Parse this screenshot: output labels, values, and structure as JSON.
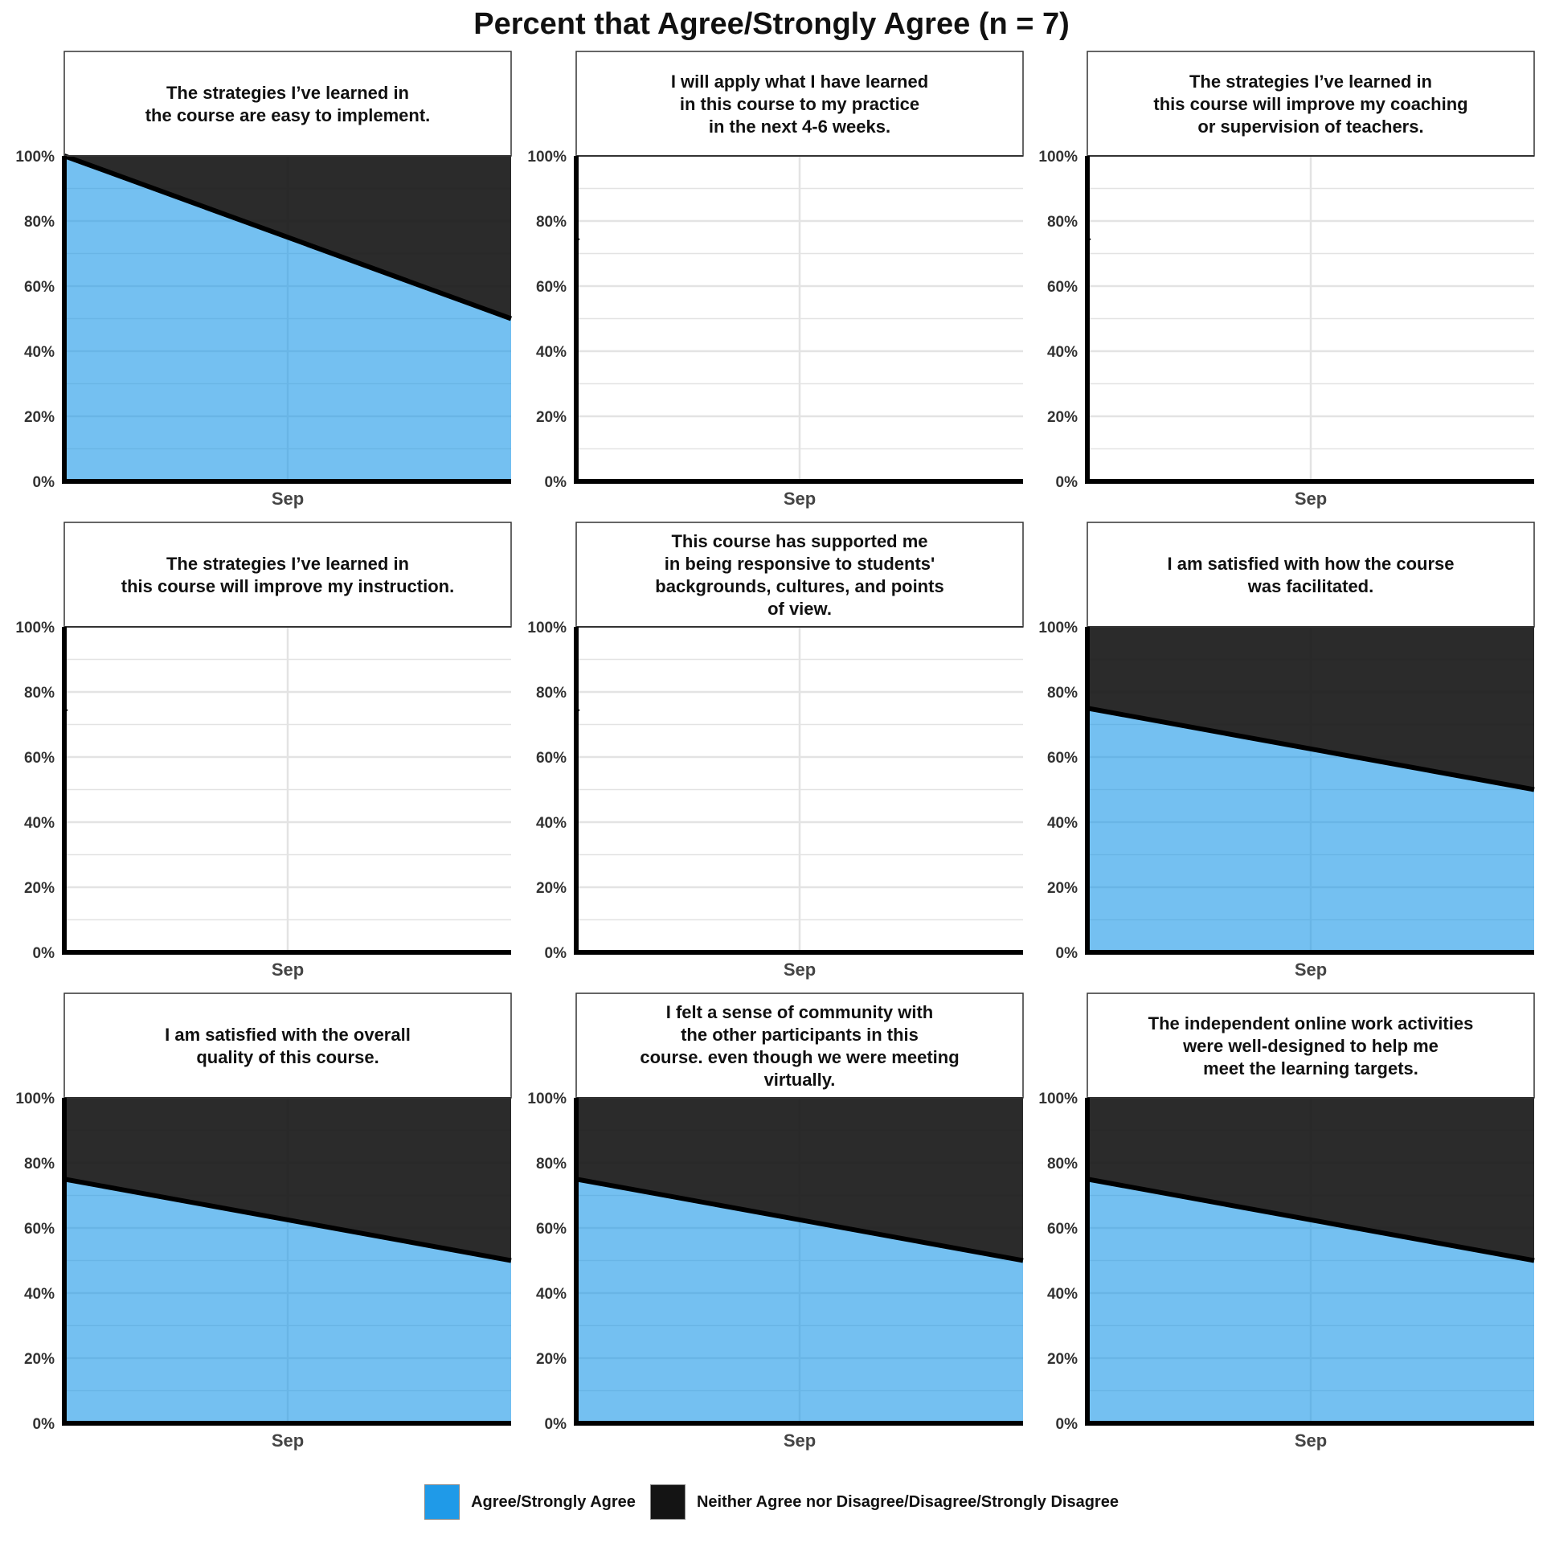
{
  "title": "Percent that Agree/Strongly Agree (n = 7)",
  "legend": {
    "items": [
      {
        "label": "Agree/Strongly Agree",
        "color": "#1f9ae8"
      },
      {
        "label": "Neither Agree nor Disagree/Disagree/Strongly Disagree",
        "color": "#141414"
      }
    ]
  },
  "chart_data": {
    "type": "area",
    "facet_layout": "3x3 grid",
    "x_categories": [
      "Sep"
    ],
    "ylim": [
      0,
      100
    ],
    "yticks": [
      "0%",
      "20%",
      "40%",
      "60%",
      "80%",
      "100%"
    ],
    "grid": true,
    "legend_position": "bottom",
    "series_colors": {
      "agree": "#1f9ae8",
      "neither_disagree": "#141414"
    },
    "panels": [
      {
        "title": "The strategies I’ve learned in\nthe course are easy to implement.",
        "agree_start": 100,
        "agree_end": 50,
        "has_data": true
      },
      {
        "title": "I will apply what I have learned\nin this course to my practice\nin the next 4-6 weeks.",
        "agree_start": 75,
        "agree_end": 0,
        "has_data": false
      },
      {
        "title": "The strategies I’ve learned in\nthis course will improve my coaching\nor supervision of teachers.",
        "agree_start": 75,
        "agree_end": 0,
        "has_data": false
      },
      {
        "title": "The strategies I’ve learned in\nthis course will improve my instruction.",
        "agree_start": 75,
        "agree_end": 0,
        "has_data": false
      },
      {
        "title": "This course has supported me\nin being responsive to students'\nbackgrounds, cultures, and points\nof view.",
        "agree_start": 75,
        "agree_end": 0,
        "has_data": false
      },
      {
        "title": "I am satisfied with how the course\nwas facilitated.",
        "agree_start": 75,
        "agree_end": 50,
        "has_data": true
      },
      {
        "title": "I am satisfied with the overall\nquality of this course.",
        "agree_start": 75,
        "agree_end": 50,
        "has_data": true
      },
      {
        "title": "I felt a sense of community with\nthe other participants in this\ncourse. even though we were meeting\nvirtually.",
        "agree_start": 75,
        "agree_end": 50,
        "has_data": true
      },
      {
        "title": "The independent online work activities\nwere well-designed to help me\nmeet the learning targets.",
        "agree_start": 75,
        "agree_end": 50,
        "has_data": true
      }
    ]
  }
}
